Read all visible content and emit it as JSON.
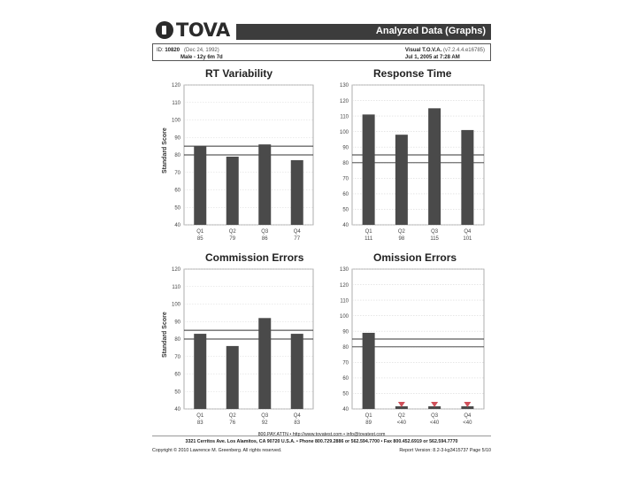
{
  "header": {
    "logo_text": "TOVA",
    "title": "Analyzed Data (Graphs)"
  },
  "info": {
    "id_label": "ID:",
    "id_value": "10820",
    "dob": "(Dec 24, 1992)",
    "demographics": "Male - 12y 6m 7d",
    "test_name": "Visual T.O.V.A.",
    "version": "(v7.2.4.4.e16785)",
    "date": "Jul 1, 2005 at 7:28 AM"
  },
  "y_axis_label": "Standard Score",
  "chart_data": [
    {
      "type": "bar",
      "title": "RT Variability",
      "categories": [
        "Q1",
        "Q2",
        "Q3",
        "Q4"
      ],
      "value_labels": [
        "85",
        "79",
        "86",
        "77"
      ],
      "values": [
        85,
        79,
        86,
        77
      ],
      "ylim": [
        40,
        120
      ],
      "yticks": [
        40,
        50,
        60,
        70,
        80,
        90,
        100,
        110,
        120
      ],
      "reference_lines": [
        80,
        85
      ],
      "ylabel": "Standard Score",
      "below_floor": [
        false,
        false,
        false,
        false
      ]
    },
    {
      "type": "bar",
      "title": "Response Time",
      "categories": [
        "Q1",
        "Q2",
        "Q3",
        "Q4"
      ],
      "value_labels": [
        "111",
        "98",
        "115",
        "101"
      ],
      "values": [
        111,
        98,
        115,
        101
      ],
      "ylim": [
        40,
        130
      ],
      "yticks": [
        40,
        50,
        60,
        70,
        80,
        90,
        100,
        110,
        120,
        130
      ],
      "reference_lines": [
        80,
        85
      ],
      "ylabel": "",
      "below_floor": [
        false,
        false,
        false,
        false
      ]
    },
    {
      "type": "bar",
      "title": "Commission Errors",
      "categories": [
        "Q1",
        "Q2",
        "Q3",
        "Q4"
      ],
      "value_labels": [
        "83",
        "76",
        "92",
        "83"
      ],
      "values": [
        83,
        76,
        92,
        83
      ],
      "ylim": [
        40,
        120
      ],
      "yticks": [
        40,
        50,
        60,
        70,
        80,
        90,
        100,
        110,
        120
      ],
      "reference_lines": [
        80,
        85
      ],
      "ylabel": "Standard Score",
      "below_floor": [
        false,
        false,
        false,
        false
      ]
    },
    {
      "type": "bar",
      "title": "Omission Errors",
      "categories": [
        "Q1",
        "Q2",
        "Q3",
        "Q4"
      ],
      "value_labels": [
        "89",
        "<40",
        "<40",
        "<40"
      ],
      "values": [
        89,
        40,
        40,
        40
      ],
      "ylim": [
        40,
        130
      ],
      "yticks": [
        40,
        50,
        60,
        70,
        80,
        90,
        100,
        110,
        120,
        130
      ],
      "reference_lines": [
        80,
        85
      ],
      "ylabel": "",
      "below_floor": [
        false,
        true,
        true,
        true
      ]
    }
  ],
  "colors": {
    "bar": "#4a4a4a",
    "marker": "#d0505a",
    "grid": "#d8d8d8"
  },
  "footer": {
    "phone_web": "800.PAY.ATTN • http://www.tovatest.com • info@tovatest.com",
    "address": "3321 Cerritos Ave. Los Alamitos, CA 90720 U.S.A. • Phone 800.729.2886 or 562.594.7700 • Fax 800.452.6919 or 562.594.7770",
    "copyright": "Copyright © 2010 Lawrence M. Greenberg. All rights reserved.",
    "report_version": "Report Version: 8.2-3-kg3415737    Page 5/10"
  }
}
